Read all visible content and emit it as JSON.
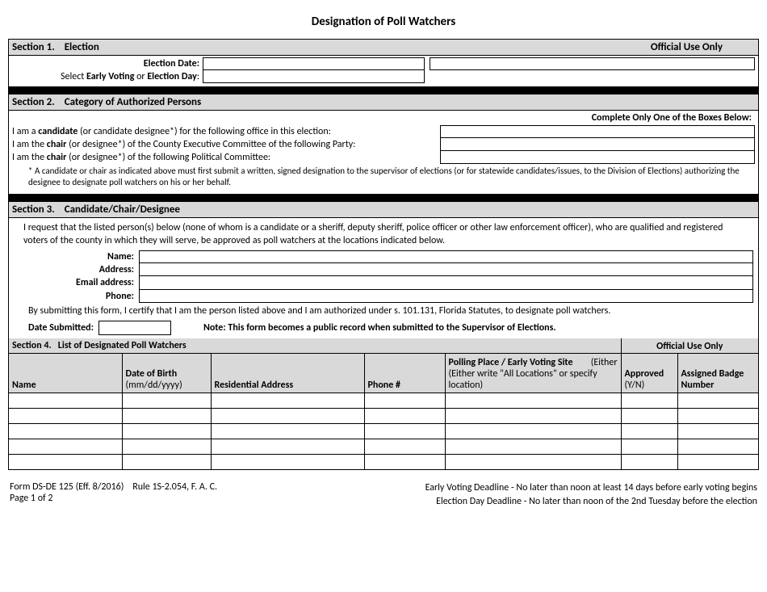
{
  "title": "Designation of Poll Watchers",
  "section1": {
    "num": "Section 1.",
    "title": "Election",
    "official": "Official Use Only",
    "election_date_label": "Election Date:",
    "select_label_pre": "Select ",
    "select_bold1": "Early Voting",
    "select_mid": " or ",
    "select_bold2": "Election Day",
    "select_post": ":"
  },
  "section2": {
    "num": "Section 2.",
    "title": "Category of Authorized Persons",
    "complete": "Complete Only One of the Boxes Below:",
    "line1_pre": "I am a ",
    "line1_bold": "candidate",
    "line1_post": " (or candidate designee*) for  the following office in this election:",
    "line2_pre": "I am the ",
    "line2_bold": "chair",
    "line2_post": " (or designee*) of the County Executive Committee of the following Party:",
    "line3_pre": "I am the ",
    "line3_bold": "chair",
    "line3_post": " (or designee*) of the following Political Committee:",
    "note": "* A candidate or chair as indicated above must first submit a written, signed designation to the supervisor of elections (or for statewide candidates/issues, to the Division of Elections) authorizing the designee to designate poll watchers on his or her behalf."
  },
  "section3": {
    "num": "Section 3.",
    "title": "Candidate/Chair/Designee",
    "request": "I request that the listed person(s) below (none of whom is a candidate or a sheriff, deputy sheriff, police officer or other law enforcement officer), who are qualified and registered voters of the county in which they will serve, be approved as poll watchers at the locations indicated below.",
    "name_label": "Name:",
    "address_label": "Address:",
    "email_label": "Email address:",
    "phone_label": "Phone:",
    "cert": "By submitting this form, I certify that I am the person listed above and I am authorized under s. 101.131, Florida Statutes, to designate poll watchers.",
    "date_submitted": "Date Submitted:",
    "public_note": "Note: This form becomes a public record when submitted to the Supervisor of Elections."
  },
  "section4": {
    "num": "Section 4.",
    "title": "List of Designated Poll Watchers",
    "official": "Official Use Only",
    "col_name": "Name",
    "col_dob_l1": "Date of Birth",
    "col_dob_l2": "(mm/dd/yyyy)",
    "col_addr": "Residential Address",
    "col_phone": "Phone #",
    "col_place_l1": "Polling Place / Early Voting Site",
    "col_place_l2_pre": "(Either write \"All Locations\" or specify location)",
    "col_approved_l1": "Approved",
    "col_approved_l2": "(Y/N)",
    "col_badge_l1": "Assigned Badge",
    "col_badge_l2": "Number",
    "row_count": 5
  },
  "footer": {
    "form_id": "Form DS-DE 125 (Eff. 8/2016)",
    "rule": "Rule 1S-2.054, F. A. C.",
    "page": "Page 1 of 2",
    "deadline1": "Early Voting Deadline - No later than noon at least 14 days before early voting begins",
    "deadline2": "Election Day Deadline - No later than noon of the 2nd Tuesday before the election"
  },
  "colors": {
    "header_bg": "#d9d9d9",
    "border": "#000000",
    "bg": "#ffffff"
  }
}
